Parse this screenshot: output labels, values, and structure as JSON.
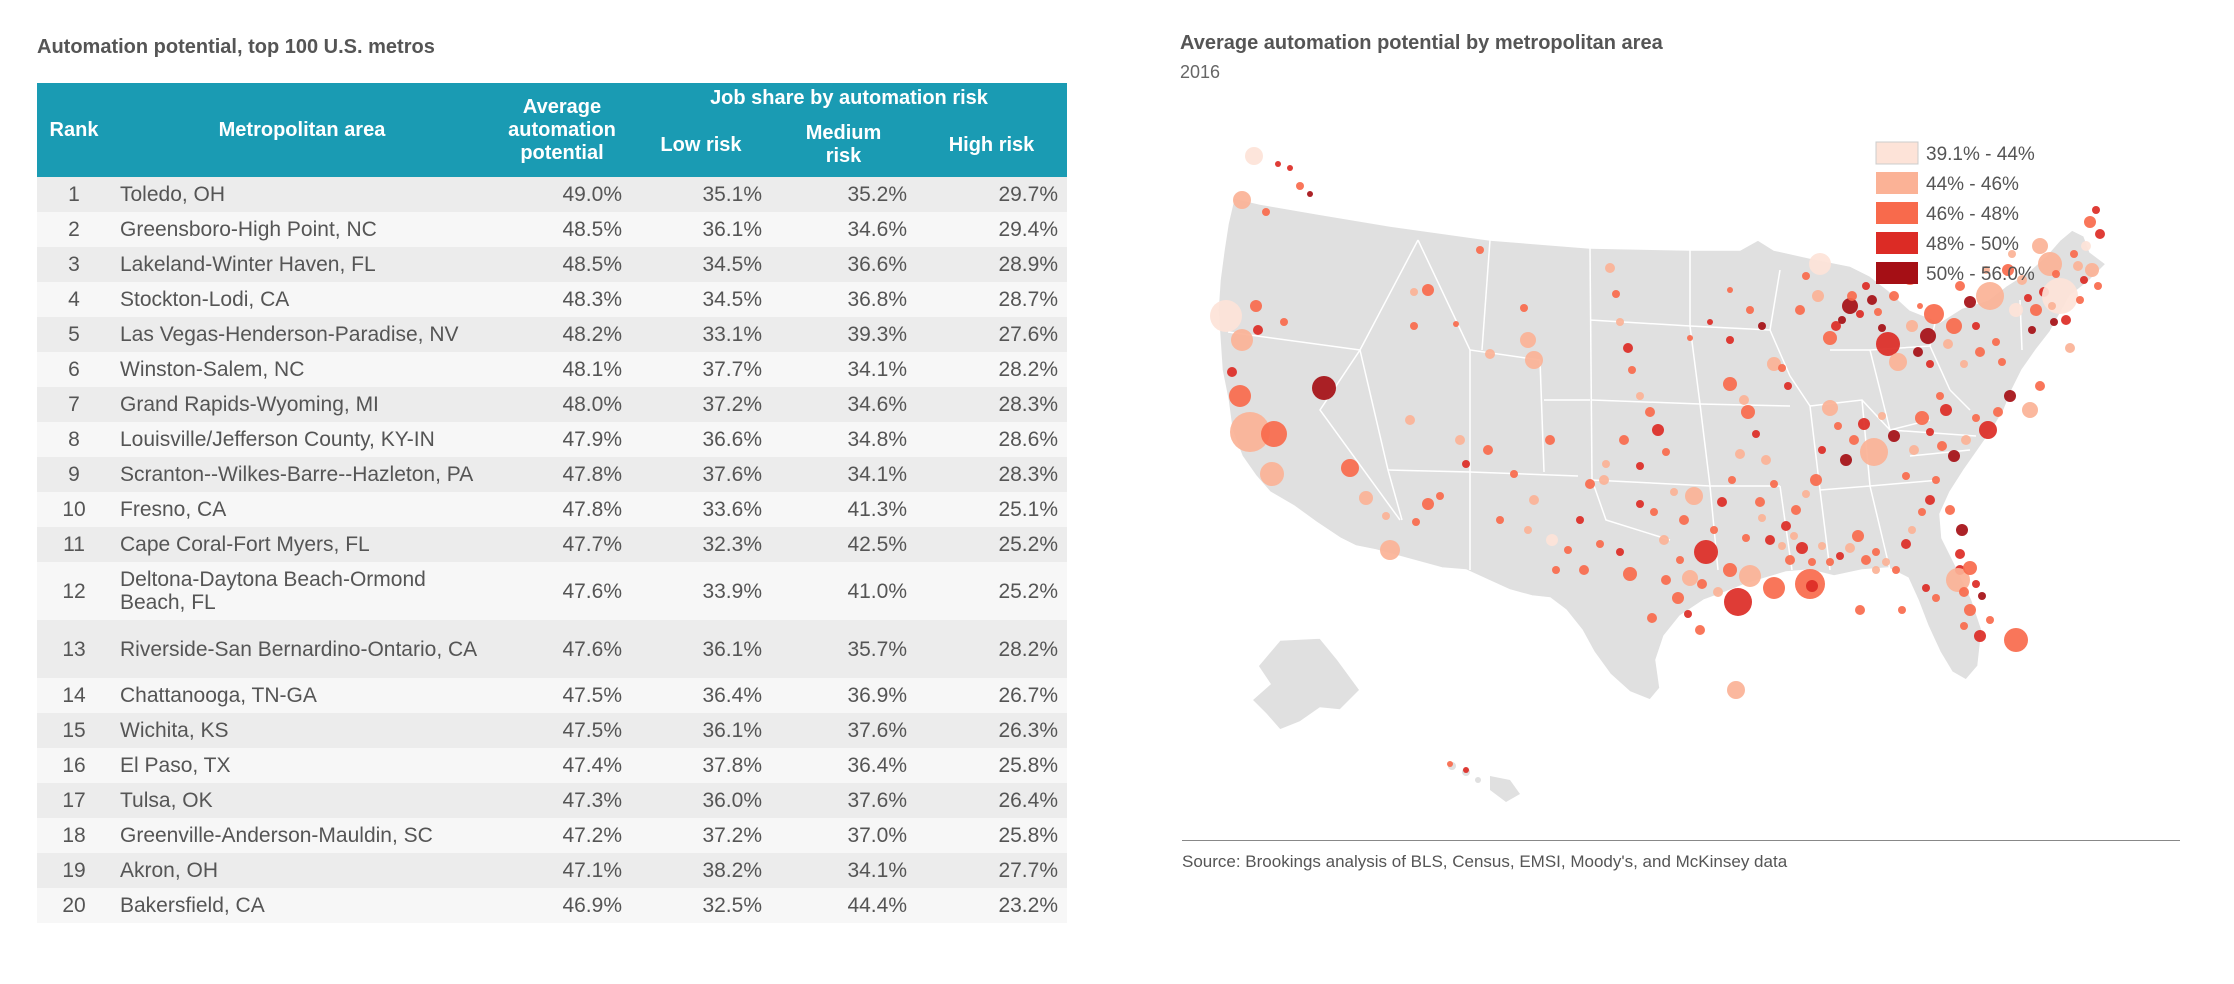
{
  "table": {
    "title": "Automation potential, top 100 U.S. metros",
    "headers": {
      "rank": "Rank",
      "area": "Metropolitan area",
      "avg_lines": [
        "Average",
        "automation",
        "potential"
      ],
      "group": "Job share by automation risk",
      "low": "Low risk",
      "medium_lines": [
        "Medium",
        "risk"
      ],
      "high": "High risk"
    },
    "rows": [
      {
        "rank": "1",
        "area": "Toledo, OH",
        "avg": "49.0%",
        "low": "35.1%",
        "medium": "35.2%",
        "high": "29.7%"
      },
      {
        "rank": "2",
        "area": "Greensboro-High Point, NC",
        "avg": "48.5%",
        "low": "36.1%",
        "medium": "34.6%",
        "high": "29.4%"
      },
      {
        "rank": "3",
        "area": "Lakeland-Winter Haven, FL",
        "avg": "48.5%",
        "low": "34.5%",
        "medium": "36.6%",
        "high": "28.9%"
      },
      {
        "rank": "4",
        "area": "Stockton-Lodi, CA",
        "avg": "48.3%",
        "low": "34.5%",
        "medium": "36.8%",
        "high": "28.7%"
      },
      {
        "rank": "5",
        "area": "Las Vegas-Henderson-Paradise, NV",
        "avg": "48.2%",
        "low": "33.1%",
        "medium": "39.3%",
        "high": "27.6%"
      },
      {
        "rank": "6",
        "area": "Winston-Salem, NC",
        "avg": "48.1%",
        "low": "37.7%",
        "medium": "34.1%",
        "high": "28.2%"
      },
      {
        "rank": "7",
        "area": "Grand Rapids-Wyoming, MI",
        "avg": "48.0%",
        "low": "37.2%",
        "medium": "34.6%",
        "high": "28.3%"
      },
      {
        "rank": "8",
        "area": "Louisville/Jefferson County, KY-IN",
        "avg": "47.9%",
        "low": "36.6%",
        "medium": "34.8%",
        "high": "28.6%"
      },
      {
        "rank": "9",
        "area": "Scranton--Wilkes-Barre--Hazleton, PA",
        "avg": "47.8%",
        "low": "37.6%",
        "medium": "34.1%",
        "high": "28.3%"
      },
      {
        "rank": "10",
        "area": "Fresno, CA",
        "avg": "47.8%",
        "low": "33.6%",
        "medium": "41.3%",
        "high": "25.1%"
      },
      {
        "rank": "11",
        "area": "Cape Coral-Fort Myers, FL",
        "avg": "47.7%",
        "low": "32.3%",
        "medium": "42.5%",
        "high": "25.2%"
      },
      {
        "rank": "12",
        "area": "Deltona-Daytona Beach-Ormond Beach, FL",
        "avg": "47.6%",
        "low": "33.9%",
        "medium": "41.0%",
        "high": "25.2%"
      },
      {
        "rank": "13",
        "area": "Riverside-San Bernardino-Ontario, CA",
        "avg": "47.6%",
        "low": "36.1%",
        "medium": "35.7%",
        "high": "28.2%"
      },
      {
        "rank": "14",
        "area": "Chattanooga, TN-GA",
        "avg": "47.5%",
        "low": "36.4%",
        "medium": "36.9%",
        "high": "26.7%"
      },
      {
        "rank": "15",
        "area": "Wichita, KS",
        "avg": "47.5%",
        "low": "36.1%",
        "medium": "37.6%",
        "high": "26.3%"
      },
      {
        "rank": "16",
        "area": "El Paso, TX",
        "avg": "47.4%",
        "low": "37.8%",
        "medium": "36.4%",
        "high": "25.8%"
      },
      {
        "rank": "17",
        "area": "Tulsa, OK",
        "avg": "47.3%",
        "low": "36.0%",
        "medium": "37.6%",
        "high": "26.4%"
      },
      {
        "rank": "18",
        "area": "Greenville-Anderson-Mauldin, SC",
        "avg": "47.2%",
        "low": "37.2%",
        "medium": "37.0%",
        "high": "25.8%"
      },
      {
        "rank": "19",
        "area": "Akron, OH",
        "avg": "47.1%",
        "low": "38.2%",
        "medium": "34.1%",
        "high": "27.7%"
      },
      {
        "rank": "20",
        "area": "Bakersfield, CA",
        "avg": "46.9%",
        "low": "32.5%",
        "medium": "44.4%",
        "high": "23.2%"
      }
    ]
  },
  "map": {
    "title": "Average automation potential by metropolitan area",
    "subtitle": "2016",
    "legend": [
      {
        "label": "39.1% - 44%",
        "color": "#fde3d8"
      },
      {
        "label": "44% - 46%",
        "color": "#fbb296"
      },
      {
        "label": "46% - 48%",
        "color": "#f86a4c"
      },
      {
        "label": "48% - 50%",
        "color": "#dc2b25"
      },
      {
        "label": "50% - 56.0%",
        "color": "#a50f15"
      }
    ],
    "source": "Source: Brookings analysis of BLS, Census, EMSI, Moody's, and McKinsey data"
  }
}
